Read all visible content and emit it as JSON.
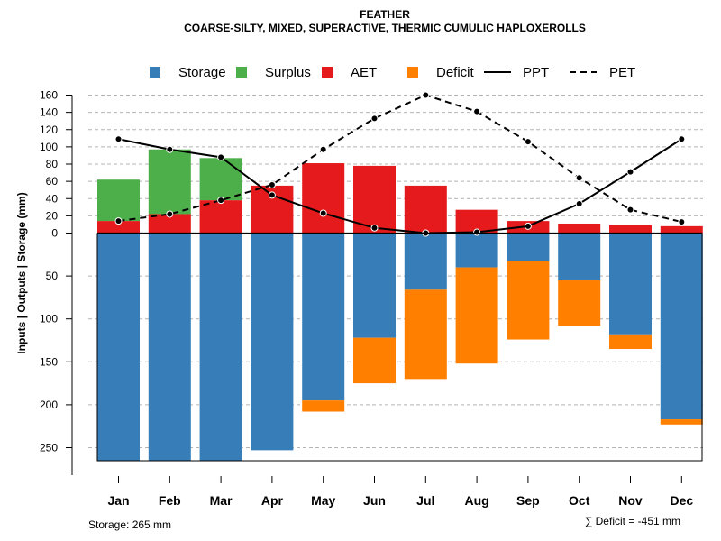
{
  "chart_data": {
    "type": "bar",
    "title": "FEATHER",
    "subtitle": "COARSE-SILTY, MIXED, SUPERACTIVE, THERMIC CUMULIC HAPLOXEROLLS",
    "ylabel": "Inputs | Outputs | Storage    (mm)",
    "categories": [
      "Jan",
      "Feb",
      "Mar",
      "Apr",
      "May",
      "Jun",
      "Jul",
      "Aug",
      "Sep",
      "Oct",
      "Nov",
      "Dec"
    ],
    "upper_axis": {
      "ylim": [
        0,
        160
      ],
      "ticks": [
        0,
        20,
        40,
        60,
        80,
        100,
        120,
        140,
        160
      ]
    },
    "lower_axis": {
      "ylim": [
        0,
        265
      ],
      "ticks": [
        50,
        100,
        150,
        200,
        250
      ]
    },
    "legend": [
      {
        "key": "storage",
        "label": "Storage",
        "kind": "box",
        "color": "#377EB8"
      },
      {
        "key": "surplus",
        "label": "Surplus",
        "kind": "box",
        "color": "#4DAF4A"
      },
      {
        "key": "aet",
        "label": "AET",
        "kind": "box",
        "color": "#E41A1C"
      },
      {
        "key": "deficit",
        "label": "Deficit",
        "kind": "box",
        "color": "#FF7F00"
      },
      {
        "key": "ppt",
        "label": "PPT",
        "kind": "solid",
        "color": "#000000"
      },
      {
        "key": "pet",
        "label": "PET",
        "kind": "dashed",
        "color": "#000000"
      }
    ],
    "series": [
      {
        "name": "AET",
        "color": "#E41A1C",
        "values": [
          14,
          22,
          38,
          55,
          81,
          78,
          55,
          27,
          14,
          11,
          9,
          8
        ]
      },
      {
        "name": "Surplus",
        "color": "#4DAF4A",
        "values": [
          48,
          75,
          49,
          0,
          0,
          0,
          0,
          0,
          0,
          0,
          0,
          0
        ]
      },
      {
        "name": "Storage",
        "color": "#377EB8",
        "values": [
          265,
          265,
          265,
          253,
          195,
          122,
          66,
          40,
          33,
          55,
          118,
          217
        ]
      },
      {
        "name": "Deficit",
        "color": "#FF7F00",
        "values": [
          0,
          0,
          0,
          0,
          13,
          53,
          104,
          112,
          91,
          53,
          17,
          6
        ]
      },
      {
        "name": "PPT",
        "color": "#000000",
        "values": [
          109,
          97,
          88,
          44,
          23,
          6,
          0,
          1,
          8,
          34,
          71,
          109
        ]
      },
      {
        "name": "PET",
        "color": "#000000",
        "values": [
          14,
          22,
          38,
          56,
          97,
          133,
          160,
          141,
          106,
          64,
          27,
          13
        ]
      }
    ],
    "storage_note": "Storage: 265 mm",
    "deficit_note": "∑ Deficit = -451 mm"
  }
}
